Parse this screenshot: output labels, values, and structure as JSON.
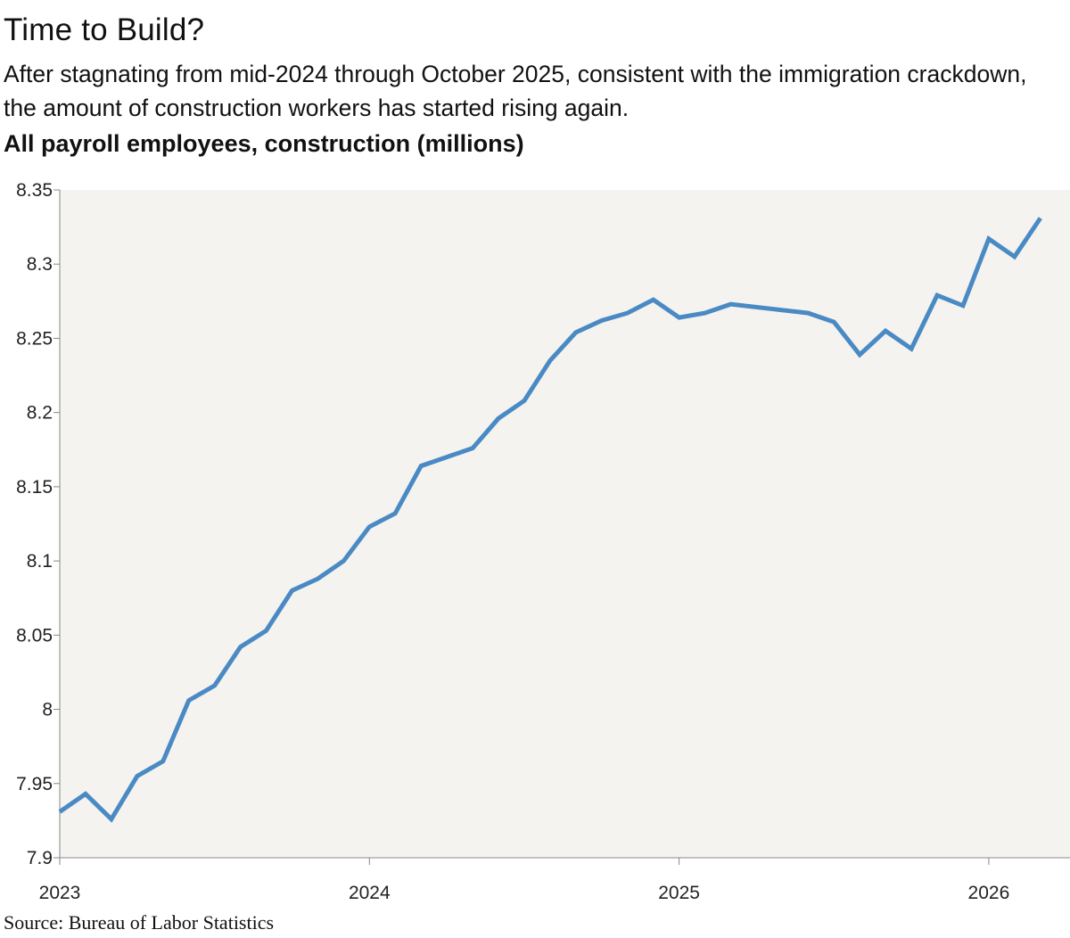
{
  "title": "Time to Build?",
  "subtitle": "After stagnating from mid-2024 through October 2025, consistent with the immigration crackdown, the amount of construction workers has started rising again.",
  "source": "Source: Bureau of Labor Statistics",
  "chart_data": {
    "type": "line",
    "title": "Time to Build?",
    "ylabel": "All payroll employees, construction (millions)",
    "xlabel": "",
    "ylim": [
      7.9,
      8.35
    ],
    "xlim": [
      "2023-01",
      "2026-05"
    ],
    "grid": false,
    "background": "#f5f3ef",
    "line_color": "#4a8ac4",
    "y_ticks": [
      "7.9",
      "7.95",
      "8",
      "8.05",
      "8.1",
      "8.15",
      "8.2",
      "8.25",
      "8.3",
      "8.35"
    ],
    "x_ticks": [
      "2023",
      "2024",
      "2025",
      "2026"
    ],
    "series": [
      {
        "x": [
          "2023-01",
          "2023-02",
          "2023-03",
          "2023-04",
          "2023-05",
          "2023-06",
          "2023-07",
          "2023-08",
          "2023-09",
          "2023-10",
          "2023-11",
          "2023-12",
          "2024-01",
          "2024-02",
          "2024-03",
          "2024-04",
          "2024-05",
          "2024-06",
          "2024-07",
          "2024-08",
          "2024-09",
          "2024-10",
          "2024-11",
          "2024-12",
          "2025-01",
          "2025-02",
          "2025-03",
          "2025-06",
          "2025-07",
          "2025-08",
          "2025-09",
          "2025-10",
          "2025-11",
          "2025-12",
          "2026-01",
          "2026-02",
          "2026-03"
        ],
        "values": [
          7.931,
          7.943,
          7.926,
          7.955,
          7.965,
          8.006,
          8.016,
          8.042,
          8.053,
          8.08,
          8.088,
          8.1,
          8.123,
          8.132,
          8.164,
          8.17,
          8.176,
          8.196,
          8.208,
          8.235,
          8.254,
          8.262,
          8.267,
          8.276,
          8.264,
          8.267,
          8.273,
          8.267,
          8.261,
          8.239,
          8.255,
          8.243,
          8.279,
          8.272,
          8.317,
          8.305,
          8.331
        ]
      }
    ]
  }
}
